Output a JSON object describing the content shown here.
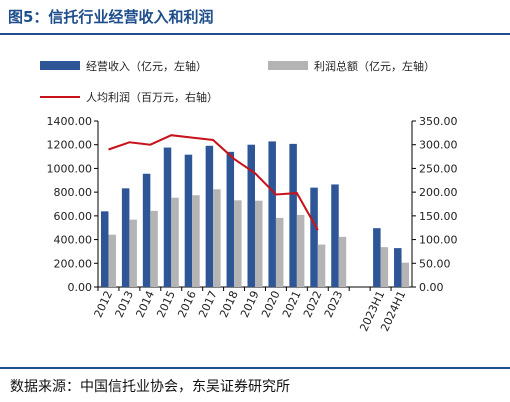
{
  "figure": {
    "title": "图5：信托行业经营收入和利润",
    "source": "数据来源：中国信托业协会，东吴证券研究所"
  },
  "colors": {
    "revenue": "#2e5596",
    "total_profit": "#b4b4b4",
    "per_capita": "#c8121a",
    "frame": "#1f4e8c"
  },
  "chart_data": {
    "type": "bar",
    "categories": [
      "2012",
      "2013",
      "2014",
      "2015",
      "2016",
      "2017",
      "2018",
      "2019",
      "2020",
      "2021",
      "2022",
      "2023",
      "",
      "2023H1",
      "2024H1"
    ],
    "series": [
      {
        "name": "经营收入（亿元，左轴）",
        "type": "bar",
        "axis": "left",
        "values": [
          638,
          832,
          955,
          1176,
          1116,
          1191,
          1140,
          1200,
          1228,
          1207,
          838,
          865,
          null,
          496,
          328
        ]
      },
      {
        "name": "利润总额（亿元，左轴）",
        "type": "bar",
        "axis": "left",
        "values": [
          441,
          568,
          642,
          753,
          774,
          824,
          731,
          728,
          583,
          608,
          358,
          423,
          null,
          336,
          205
        ]
      },
      {
        "name": "人均利润（百万元，右轴）",
        "type": "line",
        "axis": "right",
        "values": [
          290,
          305,
          300,
          320,
          315,
          310,
          270,
          240,
          195,
          198,
          120,
          null,
          null,
          null,
          null
        ]
      }
    ],
    "left_axis": {
      "ylim": [
        0,
        1400
      ],
      "ticks": [
        "0.00",
        "200.00",
        "400.00",
        "600.00",
        "800.00",
        "1000.00",
        "1200.00",
        "1400.00"
      ]
    },
    "right_axis": {
      "ylim": [
        0,
        350
      ],
      "ticks": [
        "0.00",
        "50.00",
        "100.00",
        "150.00",
        "200.00",
        "250.00",
        "300.00",
        "350.00"
      ]
    },
    "legend_position": "top",
    "grid": false
  }
}
